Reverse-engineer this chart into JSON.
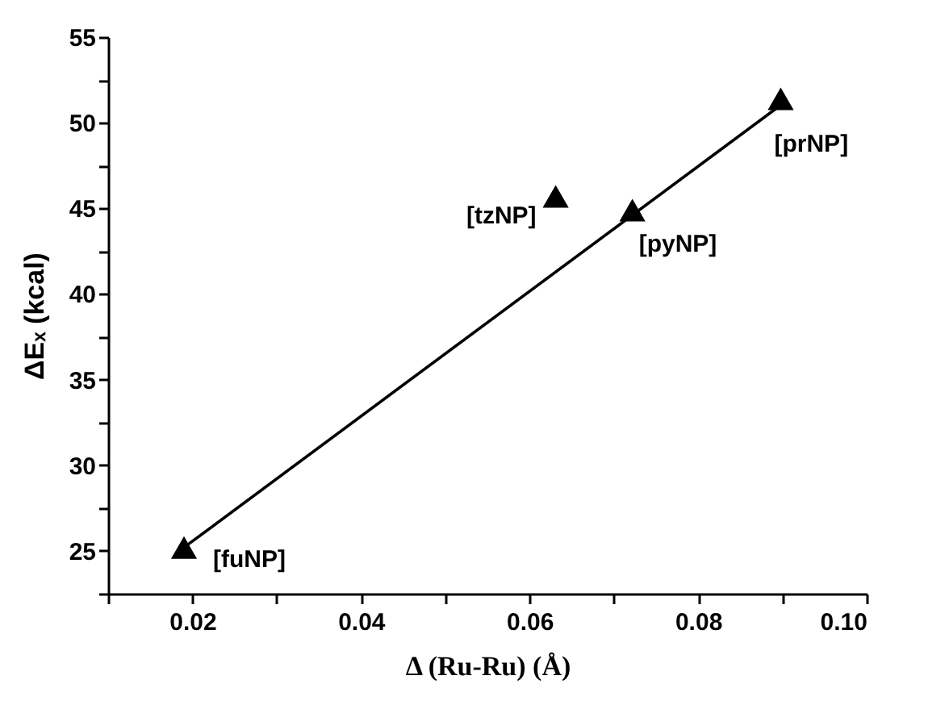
{
  "chart_data": {
    "type": "scatter",
    "xlabel": "Δ (Ru-Ru) (Å)",
    "ylabel": "ΔEₓ (kcal)",
    "series": [
      {
        "color": "#000000",
        "marker": "triangle",
        "x": [
          0.019,
          0.0631,
          0.0722,
          0.0898
        ],
        "values": [
          25.2,
          45.7,
          44.9,
          51.4
        ]
      },
      {
        "type": "line",
        "color": "#000000",
        "line_style": "solid",
        "marker": "none",
        "x": [
          0.019,
          0.09
        ],
        "values": [
          25.2,
          51.1
        ]
      }
    ],
    "xlim": [
      0.01,
      0.1
    ],
    "xticks": [
      {
        "value": 0.01,
        "label": null
      },
      0.02,
      {
        "value": 0.03,
        "label": null
      },
      0.04,
      {
        "value": 0.05,
        "label": null
      },
      0.06,
      {
        "value": 0.07,
        "label": null
      },
      0.08,
      {
        "value": 0.09,
        "label": null
      },
      {
        "value": 0.1,
        "label": "0.10"
      }
    ],
    "ylim": [
      22.5,
      55
    ],
    "yticks": [
      {
        "value": 22.5,
        "label": null
      },
      25,
      {
        "value": 27.5,
        "label": null
      },
      30,
      {
        "value": 32.5,
        "label": null
      },
      35,
      {
        "value": 37.5,
        "label": null
      },
      40,
      {
        "value": 42.5,
        "label": null
      },
      45,
      {
        "value": 47.5,
        "label": null
      },
      50,
      {
        "value": 52.5,
        "label": null
      },
      55
    ],
    "annotations": [
      {
        "text": "[fuNP]",
        "x": 0.019,
        "y": 25.2
      },
      {
        "text": "[tzNP]",
        "x": 0.0631,
        "y": 45.7
      },
      {
        "text": "[pyNP]",
        "x": 0.0722,
        "y": 44.9
      },
      {
        "text": "[prNP]",
        "x": 0.0898,
        "y": 51.4
      }
    ],
    "grid": false
  }
}
